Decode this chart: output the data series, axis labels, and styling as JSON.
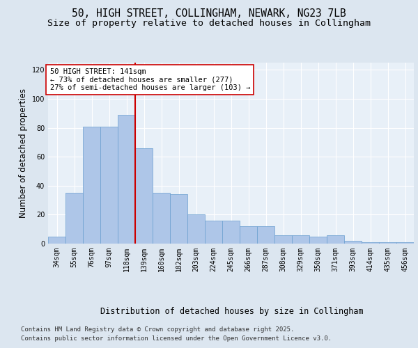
{
  "title_line1": "50, HIGH STREET, COLLINGHAM, NEWARK, NG23 7LB",
  "title_line2": "Size of property relative to detached houses in Collingham",
  "xlabel": "Distribution of detached houses by size in Collingham",
  "ylabel": "Number of detached properties",
  "categories": [
    "34sqm",
    "55sqm",
    "76sqm",
    "97sqm",
    "118sqm",
    "139sqm",
    "160sqm",
    "182sqm",
    "203sqm",
    "224sqm",
    "245sqm",
    "266sqm",
    "287sqm",
    "308sqm",
    "329sqm",
    "350sqm",
    "371sqm",
    "393sqm",
    "414sqm",
    "435sqm",
    "456sqm"
  ],
  "values": [
    5,
    35,
    81,
    81,
    89,
    66,
    35,
    34,
    20,
    16,
    16,
    12,
    12,
    6,
    6,
    5,
    6,
    2,
    1,
    1,
    1
  ],
  "bar_color": "#aec6e8",
  "bar_edge_color": "#6a9fd0",
  "vline_color": "#cc0000",
  "annotation_title": "50 HIGH STREET: 141sqm",
  "annotation_line1": "← 73% of detached houses are smaller (277)",
  "annotation_line2": "27% of semi-detached houses are larger (103) →",
  "annotation_box_color": "#ffffff",
  "annotation_box_edge": "#cc0000",
  "ylim": [
    0,
    125
  ],
  "yticks": [
    0,
    20,
    40,
    60,
    80,
    100,
    120
  ],
  "footer_line1": "Contains HM Land Registry data © Crown copyright and database right 2025.",
  "footer_line2": "Contains public sector information licensed under the Open Government Licence v3.0.",
  "bg_color": "#dce6f0",
  "plot_bg_color": "#e8f0f8",
  "title_fontsize": 10.5,
  "subtitle_fontsize": 9.5,
  "tick_fontsize": 7,
  "ylabel_fontsize": 8.5,
  "xlabel_fontsize": 8.5,
  "footer_fontsize": 6.5,
  "annotation_fontsize": 7.5
}
